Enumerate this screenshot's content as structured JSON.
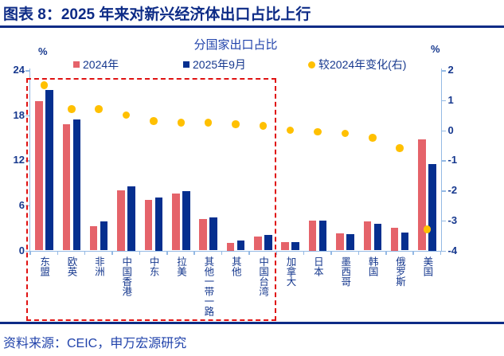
{
  "header": {
    "title": "图表 8：2025 年来对新兴经济体出口占比上行"
  },
  "source": {
    "text": "资料来源：CEIC，申万宏源研究"
  },
  "chart": {
    "title": "分国家出口占比",
    "left_axis_unit": "%",
    "right_axis_unit": "%",
    "legend": [
      {
        "label": "2024年",
        "marker": "square",
        "color": "#e5636a"
      },
      {
        "label": "2025年9月",
        "marker": "square",
        "color": "#052f8f"
      },
      {
        "label": "较2024年变化(右)",
        "marker": "circle",
        "color": "#ffc000"
      }
    ]
  },
  "colors": {
    "bar_2024": "#e5636a",
    "bar_2025": "#052f8f",
    "change_dot": "#ffc000",
    "axis": "#94b9e4",
    "navy_text": "#16388e",
    "title_navy": "#0d2b86",
    "royal_blue_text": "#2143ab",
    "dashed_box": "#e01212"
  },
  "chart_data": {
    "type": "bar",
    "title": "分国家出口占比",
    "categories": [
      "东盟",
      "欧英",
      "非洲",
      "中国香港",
      "中东",
      "拉美",
      "其他一带一路",
      "其他",
      "中国台湾",
      "加拿大",
      "日本",
      "墨西哥",
      "韩国",
      "俄罗斯",
      "美国"
    ],
    "series": [
      {
        "name": "2024年",
        "type": "bar",
        "axis": "left",
        "color": "#e5636a",
        "values": [
          19.9,
          16.8,
          3.2,
          8.0,
          6.7,
          7.6,
          4.2,
          1.0,
          1.9,
          1.1,
          4.0,
          2.3,
          3.9,
          3.0,
          14.8
        ]
      },
      {
        "name": "2025年9月",
        "type": "bar",
        "axis": "left",
        "color": "#052f8f",
        "values": [
          21.4,
          17.4,
          3.9,
          8.5,
          7.0,
          7.9,
          4.4,
          1.3,
          2.1,
          1.1,
          4.0,
          2.2,
          3.6,
          2.4,
          11.5
        ]
      },
      {
        "name": "较2024年变化(右)",
        "type": "scatter",
        "axis": "right",
        "color": "#ffc000",
        "values": [
          1.5,
          0.7,
          0.7,
          0.5,
          0.3,
          0.25,
          0.25,
          0.2,
          0.15,
          0.0,
          -0.05,
          -0.1,
          -0.25,
          -0.6,
          -3.3
        ]
      }
    ],
    "left_axis": {
      "unit": "%",
      "min": 0,
      "max": 24,
      "ticks": [
        0,
        6,
        12,
        18,
        24
      ]
    },
    "right_axis": {
      "unit": "%",
      "min": -4,
      "max": 2,
      "ticks": [
        -4,
        -3,
        -2,
        -1,
        0,
        1,
        2
      ]
    },
    "legend_position": "top",
    "grid": false,
    "annotation_box": {
      "from_category": "东盟",
      "to_category": "中国台湾",
      "style": "red-dashed-rectangle"
    }
  }
}
